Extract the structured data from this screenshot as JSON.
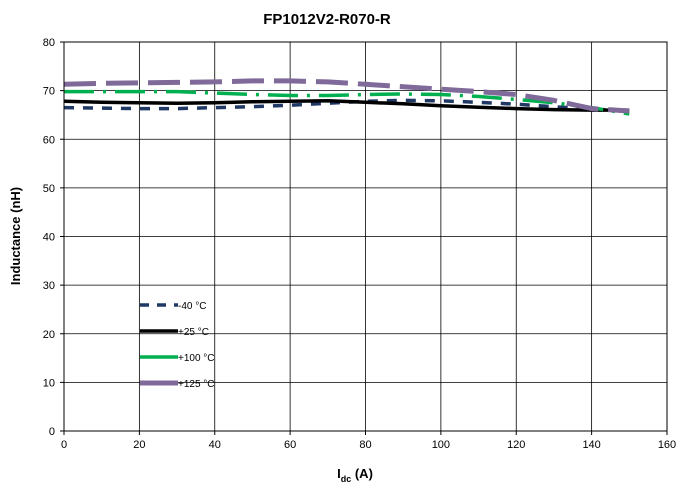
{
  "chart_data": {
    "type": "line",
    "title": "FP1012V2-R070-R",
    "xlabel_main": "I",
    "xlabel_sub": "dc",
    "xlabel_unit": " (A)",
    "ylabel": "Inductance (nH)",
    "xlim": [
      0,
      160
    ],
    "ylim": [
      0,
      80
    ],
    "xticks": [
      0,
      20,
      40,
      60,
      80,
      100,
      120,
      140,
      160
    ],
    "yticks": [
      0,
      10,
      20,
      30,
      40,
      50,
      60,
      70,
      80
    ],
    "grid": true,
    "legend_placement": "lower-left",
    "series": [
      {
        "name": "-40 °C",
        "color": "#1f3864",
        "style": "dashed",
        "x": [
          0,
          10,
          20,
          30,
          40,
          50,
          60,
          70,
          80,
          90,
          100,
          110,
          120,
          130,
          140,
          150
        ],
        "y": [
          66.5,
          66.4,
          66.3,
          66.3,
          66.5,
          66.7,
          67.0,
          67.4,
          67.8,
          68.0,
          67.9,
          67.6,
          67.2,
          66.7,
          66.2,
          65.8
        ]
      },
      {
        "name": "+25 °C",
        "color": "#000000",
        "style": "solid",
        "x": [
          0,
          10,
          20,
          30,
          40,
          50,
          60,
          70,
          80,
          90,
          100,
          110,
          120,
          130,
          140,
          150
        ],
        "y": [
          67.8,
          67.6,
          67.5,
          67.4,
          67.5,
          67.7,
          67.8,
          67.9,
          67.6,
          67.3,
          66.9,
          66.6,
          66.3,
          66.1,
          66.0,
          66.0
        ]
      },
      {
        "name": "+100 °C",
        "color": "#00b050",
        "style": "dash-dot",
        "x": [
          0,
          10,
          20,
          30,
          40,
          50,
          60,
          70,
          80,
          90,
          100,
          110,
          120,
          130,
          140,
          150
        ],
        "y": [
          69.8,
          69.8,
          69.8,
          69.8,
          69.5,
          69.2,
          69.0,
          69.0,
          69.2,
          69.3,
          69.2,
          68.8,
          68.2,
          67.5,
          66.5,
          65.2
        ]
      },
      {
        "name": "+125 °C",
        "color": "#7f6a99",
        "style": "long-dash",
        "x": [
          0,
          10,
          20,
          30,
          40,
          50,
          60,
          70,
          80,
          90,
          100,
          110,
          120,
          130,
          140,
          150
        ],
        "y": [
          71.3,
          71.5,
          71.6,
          71.7,
          71.8,
          72.0,
          72.0,
          71.8,
          71.3,
          70.8,
          70.3,
          69.8,
          69.2,
          68.0,
          66.3,
          65.8
        ]
      }
    ]
  }
}
